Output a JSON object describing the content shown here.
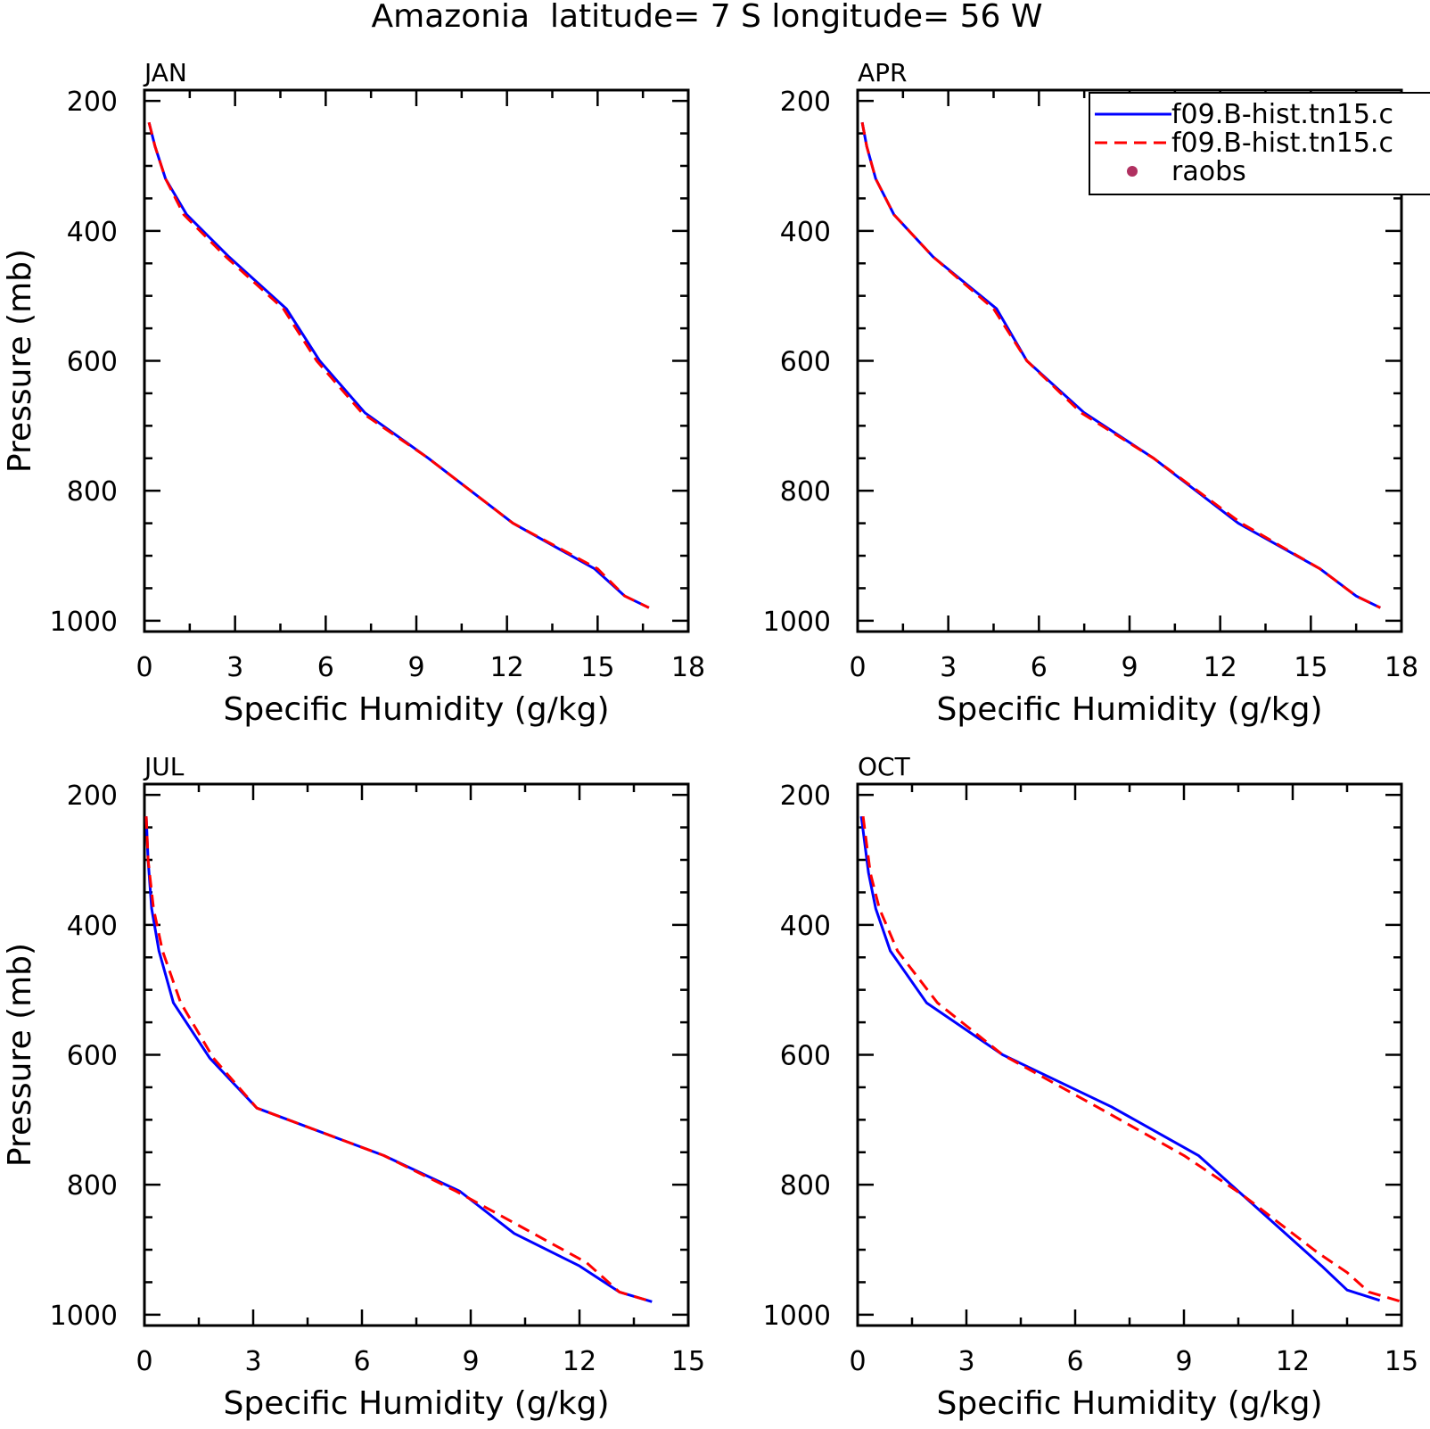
{
  "title": "Amazonia  latitude= 7 S longitude= 56 W",
  "legend": {
    "placement": "top-right of APR panel",
    "entries": [
      {
        "label": "f09.B-hist.tn15.c",
        "style": "solid",
        "color": "#0000ff"
      },
      {
        "label": "f09.B-hist.tn15.c",
        "style": "dashed",
        "color": "#ff0000"
      },
      {
        "label": "raobs",
        "style": "marker",
        "color": "#b03060"
      }
    ]
  },
  "colors": {
    "series1": "#0000ff",
    "series2": "#ff0000",
    "raobs": "#b03060"
  },
  "chart_data": [
    {
      "type": "line",
      "panel": "JAN",
      "xlabel": "Specific Humidity (g/kg)",
      "ylabel": "Pressure (mb)",
      "xlim": [
        0,
        18
      ],
      "ylim": [
        200,
        1000
      ],
      "y_inverted": true,
      "xticks": [
        0,
        3,
        6,
        9,
        12,
        15,
        18
      ],
      "yticks": [
        200,
        400,
        600,
        800,
        1000
      ],
      "series": [
        {
          "color": "#0000ff",
          "style": "solid",
          "x": [
            0.15,
            0.35,
            0.7,
            1.4,
            2.8,
            4.7,
            5.8,
            7.3,
            9.4,
            12.2,
            14.9,
            15.9,
            16.7
          ],
          "y": [
            233,
            270,
            320,
            375,
            440,
            520,
            600,
            680,
            750,
            850,
            920,
            962,
            980
          ]
        },
        {
          "color": "#ff0000",
          "style": "dashed",
          "x": [
            0.15,
            0.35,
            0.7,
            1.3,
            2.7,
            4.6,
            5.7,
            7.2,
            9.4,
            12.2,
            15.0,
            15.9,
            16.7
          ],
          "y": [
            233,
            270,
            320,
            375,
            440,
            520,
            600,
            680,
            750,
            850,
            920,
            962,
            980
          ]
        }
      ]
    },
    {
      "type": "line",
      "panel": "APR",
      "xlabel": "Specific Humidity (g/kg)",
      "ylabel": "",
      "xlim": [
        0,
        18
      ],
      "ylim": [
        200,
        1000
      ],
      "y_inverted": true,
      "xticks": [
        0,
        3,
        6,
        9,
        12,
        15,
        18
      ],
      "yticks": [
        200,
        400,
        600,
        800,
        1000
      ],
      "series": [
        {
          "color": "#0000ff",
          "style": "solid",
          "x": [
            0.15,
            0.3,
            0.6,
            1.2,
            2.5,
            4.6,
            5.6,
            7.5,
            9.8,
            12.6,
            15.3,
            16.5,
            17.3
          ],
          "y": [
            233,
            270,
            320,
            375,
            440,
            520,
            600,
            680,
            750,
            850,
            920,
            962,
            980
          ]
        },
        {
          "color": "#ff0000",
          "style": "dashed",
          "x": [
            0.15,
            0.3,
            0.6,
            1.2,
            2.5,
            4.5,
            5.6,
            7.4,
            9.8,
            12.7,
            15.3,
            16.5,
            17.3
          ],
          "y": [
            233,
            270,
            320,
            375,
            440,
            520,
            600,
            680,
            750,
            850,
            920,
            962,
            980
          ]
        }
      ]
    },
    {
      "type": "line",
      "panel": "JUL",
      "xlabel": "Specific Humidity (g/kg)",
      "ylabel": "Pressure (mb)",
      "xlim": [
        0,
        15
      ],
      "ylim": [
        200,
        1000
      ],
      "y_inverted": true,
      "xticks": [
        0,
        3,
        6,
        9,
        12,
        15
      ],
      "yticks": [
        200,
        400,
        600,
        800,
        1000
      ],
      "series": [
        {
          "color": "#0000ff",
          "style": "solid",
          "x": [
            0.05,
            0.1,
            0.2,
            0.4,
            0.8,
            1.8,
            3.1,
            6.6,
            8.7,
            10.2,
            12.0,
            13.1,
            14.0
          ],
          "y": [
            233,
            300,
            375,
            440,
            520,
            605,
            682,
            755,
            810,
            875,
            925,
            965,
            980
          ]
        },
        {
          "color": "#ff0000",
          "style": "dashed",
          "x": [
            0.05,
            0.1,
            0.25,
            0.5,
            1.0,
            1.9,
            3.1,
            6.6,
            8.6,
            10.4,
            12.2,
            13.1,
            14.0
          ],
          "y": [
            233,
            300,
            375,
            440,
            520,
            605,
            682,
            755,
            810,
            865,
            920,
            965,
            980
          ]
        }
      ]
    },
    {
      "type": "line",
      "panel": "OCT",
      "xlabel": "Specific Humidity (g/kg)",
      "ylabel": "",
      "xlim": [
        0,
        15
      ],
      "ylim": [
        200,
        1000
      ],
      "y_inverted": true,
      "xticks": [
        0,
        3,
        6,
        9,
        12,
        15
      ],
      "yticks": [
        200,
        400,
        600,
        800,
        1000
      ],
      "series": [
        {
          "color": "#0000ff",
          "style": "solid",
          "x": [
            0.1,
            0.3,
            0.5,
            0.9,
            1.9,
            4.0,
            7.0,
            9.4,
            10.6,
            12.8,
            13.5,
            14.4
          ],
          "y": [
            233,
            320,
            375,
            440,
            520,
            600,
            680,
            755,
            815,
            925,
            962,
            978
          ]
        },
        {
          "color": "#ff0000",
          "style": "dashed",
          "x": [
            0.15,
            0.35,
            0.6,
            1.1,
            2.2,
            4.0,
            6.6,
            9.0,
            10.6,
            12.7,
            13.5,
            14.1,
            15.0
          ],
          "y": [
            233,
            320,
            375,
            440,
            520,
            600,
            680,
            755,
            815,
            905,
            935,
            965,
            980
          ]
        }
      ]
    }
  ]
}
